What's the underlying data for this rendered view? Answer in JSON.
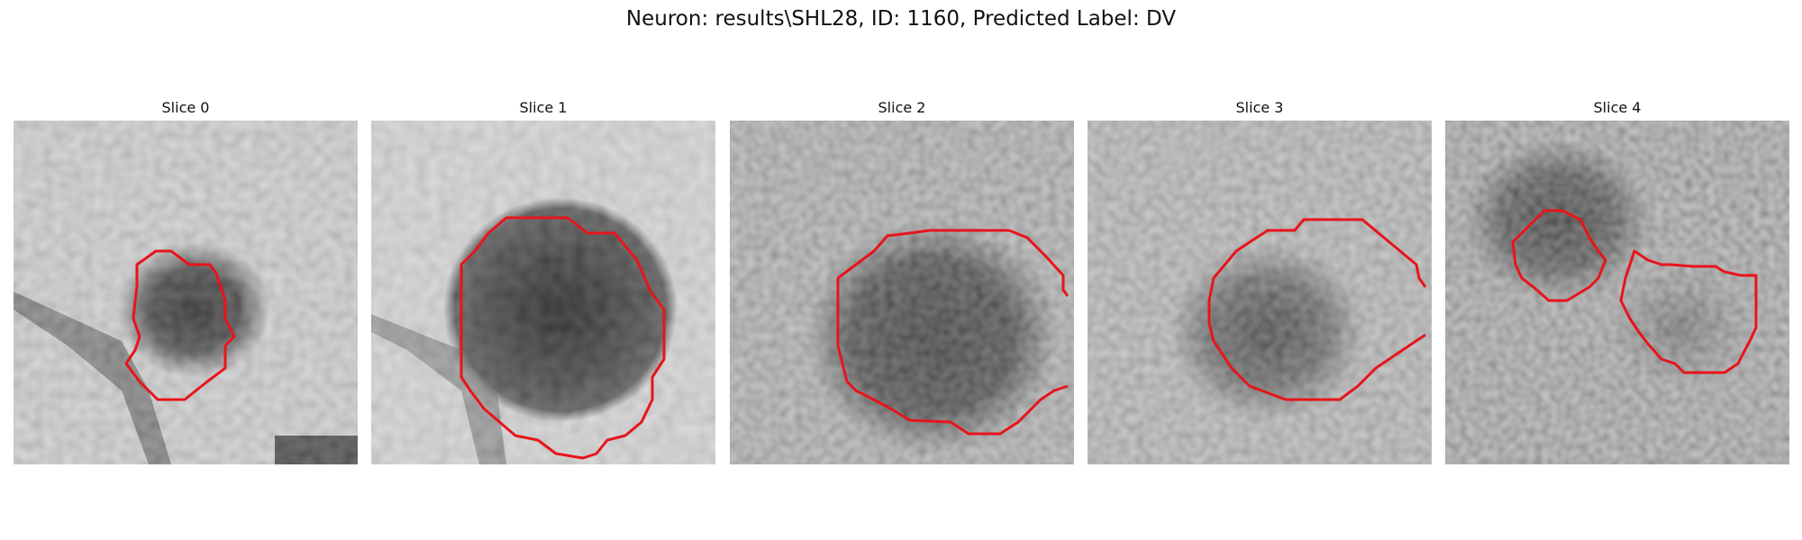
{
  "figure": {
    "title": "Neuron: results\\SHL28, ID: 1160, Predicted Label: DV",
    "contour_color": "#e8141a",
    "image_type": "grayscale microscopy slices",
    "slices": [
      {
        "label": "Slice 0"
      },
      {
        "label": "Slice 1"
      },
      {
        "label": "Slice 2"
      },
      {
        "label": "Slice 3"
      },
      {
        "label": "Slice 4"
      }
    ]
  }
}
